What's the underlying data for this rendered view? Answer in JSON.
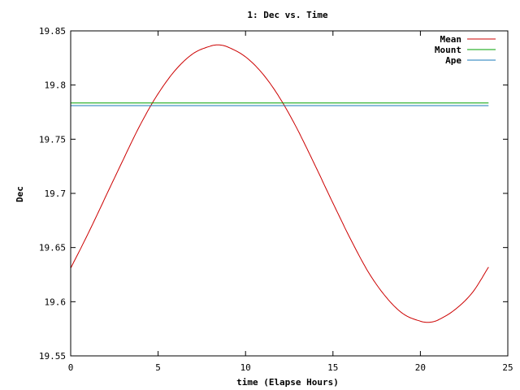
{
  "chart_data": {
    "type": "line",
    "title": "1: Dec vs. Time",
    "xlabel": "time (Elapse Hours)",
    "ylabel": "Dec",
    "xlim": [
      0,
      25
    ],
    "ylim": [
      19.55,
      19.85
    ],
    "x_ticks": [
      "0",
      "5",
      "10",
      "15",
      "20",
      "25"
    ],
    "y_ticks": [
      "19.55",
      "19.6",
      "19.65",
      "19.7",
      "19.75",
      "19.8",
      "19.85"
    ],
    "grid": false,
    "legend_position": "top-right",
    "series": [
      {
        "name": "Mean",
        "color": "#cc0000",
        "x": [
          0,
          1,
          2,
          3,
          4,
          5,
          6,
          7,
          8,
          8.5,
          9,
          10,
          11,
          12,
          13,
          14,
          15,
          16,
          17,
          18,
          19,
          20,
          20.5,
          21,
          22,
          23,
          23.9
        ],
        "y": [
          19.631,
          19.663,
          19.697,
          19.731,
          19.764,
          19.792,
          19.814,
          19.829,
          19.836,
          19.837,
          19.835,
          19.826,
          19.81,
          19.787,
          19.758,
          19.725,
          19.691,
          19.658,
          19.628,
          19.605,
          19.589,
          19.582,
          19.581,
          19.583,
          19.593,
          19.609,
          19.632
        ]
      },
      {
        "name": "Mount",
        "color": "#00a000",
        "x": [
          0,
          23.9
        ],
        "y": [
          19.7835,
          19.7835
        ]
      },
      {
        "name": "Ape",
        "color": "#1a7ab8",
        "x": [
          0,
          23.9
        ],
        "y": [
          19.781,
          19.781
        ]
      }
    ]
  }
}
